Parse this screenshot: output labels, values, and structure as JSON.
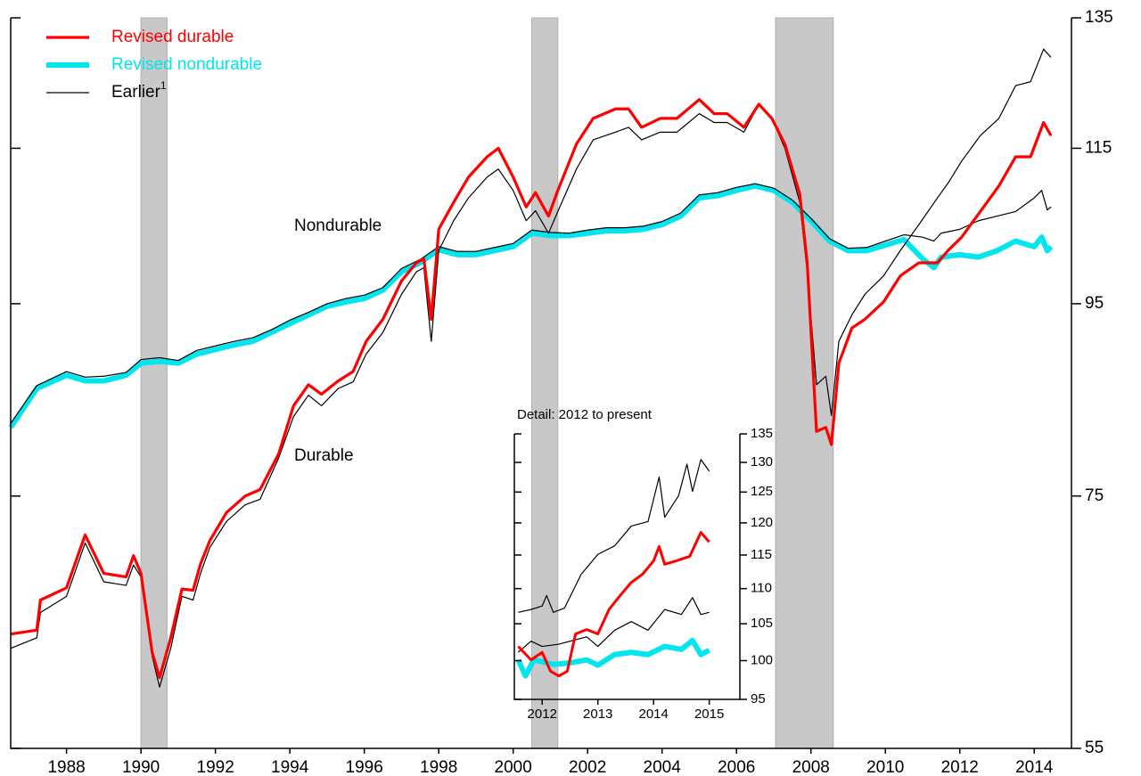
{
  "chart_data": [
    {
      "type": "line",
      "log": true,
      "xlim": [
        1986.5,
        2015
      ],
      "xticks": [
        1988,
        1990,
        1992,
        1994,
        1996,
        1998,
        2000,
        2002,
        2004,
        2006,
        2008,
        2010,
        2012,
        2014
      ],
      "ylim": [
        55,
        135
      ],
      "yticks": [
        55,
        75,
        95,
        115,
        135
      ],
      "recessions": [
        [
          1990.0,
          1990.7
        ],
        [
          2000.5,
          2001.2
        ],
        [
          2007.05,
          2008.6
        ]
      ],
      "annotations": [
        "Nondurable",
        "Durable"
      ],
      "series": [
        {
          "name": "Revised durable",
          "color": "#ff0000",
          "width": 3.2,
          "x": [
            1986.5,
            1987.2,
            1987.3,
            1988,
            1988.5,
            1989,
            1989.6,
            1989.8,
            1990,
            1990.3,
            1990.5,
            1990.8,
            1991.1,
            1991.4,
            1991.6,
            1991.85,
            1992.3,
            1992.8,
            1993.2,
            1993.7,
            1994.1,
            1994.5,
            1994.85,
            1995.3,
            1995.7,
            1996.05,
            1996.5,
            1997,
            1997.4,
            1997.6,
            1997.8,
            1998,
            1998.4,
            1998.8,
            1999.3,
            1999.6,
            2000,
            2000.35,
            2000.6,
            2000.95,
            2001.2,
            2001.7,
            2002.15,
            2002.75,
            2003.1,
            2003.45,
            2003.95,
            2004.4,
            2005,
            2005.4,
            2005.75,
            2006.2,
            2006.6,
            2006.95,
            2007.3,
            2007.7,
            2007.9,
            2008.15,
            2008.4,
            2008.55,
            2008.75,
            2009.1,
            2009.45,
            2009.95,
            2010.4,
            2010.9,
            2011.4,
            2011.7,
            2012.05,
            2012.55,
            2013.05,
            2013.5,
            2013.9,
            2014.25,
            2014.45
          ],
          "values": [
            63.3,
            63.6,
            66.0,
            67,
            71.5,
            68.2,
            67.9,
            69.7,
            68.2,
            61.9,
            60,
            63,
            66.9,
            66.8,
            69,
            71,
            73.5,
            75,
            75.6,
            79,
            83.8,
            86,
            85,
            86.4,
            87.4,
            90.7,
            93.2,
            97.7,
            99.9,
            100.4,
            93.2,
            104.1,
            107.6,
            111,
            113.8,
            115,
            111,
            107,
            108.9,
            105.8,
            109.2,
            115.6,
            119.3,
            120.7,
            120.7,
            118,
            119.3,
            119.3,
            122.1,
            120,
            120,
            118,
            121.4,
            119.3,
            115.6,
            108.7,
            99.9,
            81.2,
            81.6,
            79.9,
            88.3,
            92.2,
            93.2,
            95.2,
            98.3,
            99.9,
            99.9,
            101.5,
            103.1,
            106.4,
            109.8,
            113.8,
            113.8,
            118.7,
            116.8
          ]
        },
        {
          "name": "Revised nondurable",
          "color": "#00e5ee",
          "width": 6,
          "x": [
            1986.5,
            1987.2,
            1988,
            1988.5,
            1989,
            1989.6,
            1990,
            1990.5,
            1991,
            1991.5,
            1992,
            1992.5,
            1993,
            1993.5,
            1994,
            1994.5,
            1995,
            1995.5,
            1996,
            1996.5,
            1997,
            1997.5,
            1998,
            1998.5,
            1999,
            1999.5,
            2000,
            2000.5,
            2001,
            2001.5,
            2002,
            2002.5,
            2003,
            2003.5,
            2004,
            2004.5,
            2005,
            2005.5,
            2006,
            2006.5,
            2007,
            2007.5,
            2008,
            2008.5,
            2009,
            2009.5,
            2010,
            2010.5,
            2011,
            2011.3,
            2011.5,
            2012,
            2012.5,
            2013,
            2013.5,
            2014,
            2014.2,
            2014.35,
            2014.45
          ],
          "values": [
            81.6,
            85.6,
            87,
            86.4,
            86.4,
            87,
            88.3,
            88.5,
            88.3,
            89.3,
            89.8,
            90.3,
            90.7,
            91.7,
            92.7,
            93.7,
            94.7,
            95.2,
            95.6,
            96.6,
            98.8,
            99.9,
            101.5,
            100.9,
            100.9,
            101.4,
            101.9,
            103.6,
            103.3,
            103.3,
            103.6,
            103.9,
            103.9,
            104.1,
            104.7,
            105.8,
            108.2,
            108.5,
            109.2,
            109.8,
            109.2,
            107.6,
            105.2,
            102.6,
            101.4,
            101.4,
            102.1,
            102.8,
            100.4,
            99.3,
            100.6,
            100.9,
            100.6,
            101.4,
            102.6,
            101.9,
            103.1,
            101.4,
            101.9
          ]
        },
        {
          "name": "Earlier",
          "note": "1",
          "color": "#000000",
          "width": 1.2,
          "x": [
            1986.5,
            1987.2,
            1987.3,
            1988,
            1988.5,
            1989,
            1989.6,
            1989.8,
            1990,
            1990.3,
            1990.5,
            1990.8,
            1991.1,
            1991.4,
            1991.6,
            1991.85,
            1992.3,
            1992.8,
            1993.2,
            1993.7,
            1994.1,
            1994.5,
            1994.85,
            1995.3,
            1995.7,
            1996.05,
            1996.5,
            1997,
            1997.4,
            1997.6,
            1997.8,
            1998,
            1998.4,
            1998.8,
            1999.3,
            1999.6,
            2000,
            2000.35,
            2000.6,
            2000.95,
            2001.2,
            2001.7,
            2002.15,
            2002.75,
            2003.1,
            2003.45,
            2003.95,
            2004.4,
            2005,
            2005.4,
            2005.75,
            2006.2,
            2006.6,
            2006.95,
            2007.3,
            2007.7,
            2007.9,
            2008.15,
            2008.4,
            2008.55,
            2008.75,
            2009.1,
            2009.45,
            2009.95,
            2010.4,
            2010.9,
            2011.4,
            2011.7,
            2012.05,
            2012.55,
            2013.05,
            2013.5,
            2013.9,
            2014.25,
            2014.45
          ],
          "values": [
            62.2,
            63,
            65,
            66.3,
            70.8,
            67.5,
            67.2,
            68.9,
            67.9,
            61.6,
            59.3,
            62.2,
            66.3,
            66,
            68.2,
            70.4,
            72.7,
            74.2,
            74.7,
            78.6,
            82.7,
            84.9,
            83.8,
            85.6,
            86.3,
            89.3,
            91.7,
            96.1,
            98.8,
            99.3,
            90.7,
            101.4,
            105.2,
            108.2,
            111,
            112.1,
            109.2,
            105.2,
            106.5,
            103.6,
            106.4,
            112.1,
            116.2,
            117.3,
            118,
            116.2,
            117.3,
            117.3,
            120,
            118.7,
            118.7,
            117.3,
            121.4,
            119.3,
            115,
            107.6,
            98.8,
            86,
            86.9,
            82.8,
            90.7,
            93.7,
            96.1,
            98.3,
            101.4,
            104.7,
            108.2,
            110.3,
            113.2,
            116.8,
            119.3,
            124.2,
            124.8,
            129.9,
            128.6
          ]
        },
        {
          "color": "#000000",
          "width": 1.2,
          "x": [
            1986.5,
            1987.2,
            1988,
            1988.5,
            1989,
            1989.6,
            1990,
            1990.5,
            1991,
            1991.5,
            1992,
            1992.5,
            1993,
            1993.5,
            1994,
            1994.5,
            1995,
            1995.5,
            1996,
            1996.5,
            1997,
            1997.5,
            1998,
            1998.5,
            1999,
            1999.5,
            2000,
            2000.5,
            2001,
            2001.5,
            2002,
            2002.5,
            2003,
            2003.5,
            2004,
            2004.5,
            2005,
            2005.5,
            2006,
            2006.5,
            2007,
            2007.5,
            2008,
            2008.5,
            2009,
            2009.5,
            2010,
            2010.5,
            2011,
            2011.3,
            2011.5,
            2012,
            2012.5,
            2013,
            2013.5,
            2014,
            2014.2,
            2014.35,
            2014.45
          ],
          "values": [
            82.0,
            85.9,
            87.4,
            86.8,
            86.9,
            87.3,
            88.7,
            88.9,
            88.6,
            89.7,
            90.2,
            90.7,
            91.1,
            92.0,
            93.1,
            94.0,
            95.0,
            95.6,
            96.0,
            96.9,
            99.2,
            100.3,
            101.9,
            101.3,
            101.3,
            101.8,
            102.3,
            104.0,
            103.7,
            103.6,
            104.0,
            104.3,
            104.3,
            104.5,
            105.1,
            106.2,
            108.6,
            108.9,
            109.6,
            110.1,
            109.5,
            107.9,
            105.5,
            102.9,
            101.7,
            101.8,
            102.6,
            103.4,
            103.1,
            102.6,
            103.6,
            104.1,
            105.2,
            105.8,
            106.4,
            108.2,
            109.2,
            106.6,
            107
          ]
        }
      ]
    },
    {
      "type": "line",
      "log": true,
      "title": "Detail: 2012 to present",
      "xlim": [
        2011.5,
        2015.55
      ],
      "xticks": [
        2012,
        2013,
        2014,
        2015
      ],
      "ylim": [
        95,
        135
      ],
      "yticks": [
        95,
        100,
        105,
        110,
        115,
        120,
        125,
        130,
        135
      ],
      "series": [
        {
          "color": "#ff0000",
          "width": 3,
          "x": [
            2011.57,
            2011.8,
            2012,
            2012.15,
            2012.3,
            2012.45,
            2012.6,
            2012.8,
            2013,
            2013.2,
            2013.4,
            2013.6,
            2013.8,
            2014,
            2014.1,
            2014.2,
            2014.4,
            2014.65,
            2014.85,
            2015
          ],
          "values": [
            101.9,
            100.1,
            101.1,
            98.6,
            98.0,
            98.6,
            103.6,
            104.2,
            103.6,
            107,
            109,
            110.9,
            112.1,
            114.1,
            116.3,
            113.6,
            114.1,
            114.8,
            118.5,
            117
          ]
        },
        {
          "color": "#00e5ee",
          "width": 6,
          "x": [
            2011.57,
            2011.7,
            2011.85,
            2012.2,
            2012.5,
            2012.8,
            2013,
            2013.3,
            2013.6,
            2013.9,
            2014.2,
            2014.5,
            2014.7,
            2014.85,
            2015
          ],
          "values": [
            100.1,
            98,
            100.1,
            99.5,
            99.7,
            100.1,
            99.4,
            100.8,
            101.1,
            100.8,
            101.9,
            101.5,
            102.7,
            100.8,
            101.4
          ]
        },
        {
          "color": "#000000",
          "width": 1.2,
          "x": [
            2011.57,
            2011.8,
            2012,
            2012.08,
            2012.2,
            2012.4,
            2012.7,
            2013,
            2013.3,
            2013.6,
            2013.9,
            2014.1,
            2014.2,
            2014.45,
            2014.6,
            2014.7,
            2014.85,
            2015
          ],
          "values": [
            106.6,
            107,
            107.5,
            109,
            106.6,
            107.2,
            112.1,
            115.1,
            116.4,
            119.5,
            120.2,
            127.5,
            120.9,
            124.4,
            129.7,
            125.1,
            130.5,
            128.5
          ]
        },
        {
          "color": "#000000",
          "width": 1.2,
          "x": [
            2011.57,
            2011.8,
            2012,
            2012.3,
            2012.8,
            2013,
            2013.3,
            2013.6,
            2013.9,
            2014.2,
            2014.5,
            2014.7,
            2014.85,
            2015
          ],
          "values": [
            101.1,
            102.6,
            101.9,
            102.2,
            103.2,
            101.9,
            104.1,
            105.3,
            104.1,
            107,
            106.3,
            108.7,
            106.3,
            106.6
          ]
        }
      ]
    }
  ]
}
